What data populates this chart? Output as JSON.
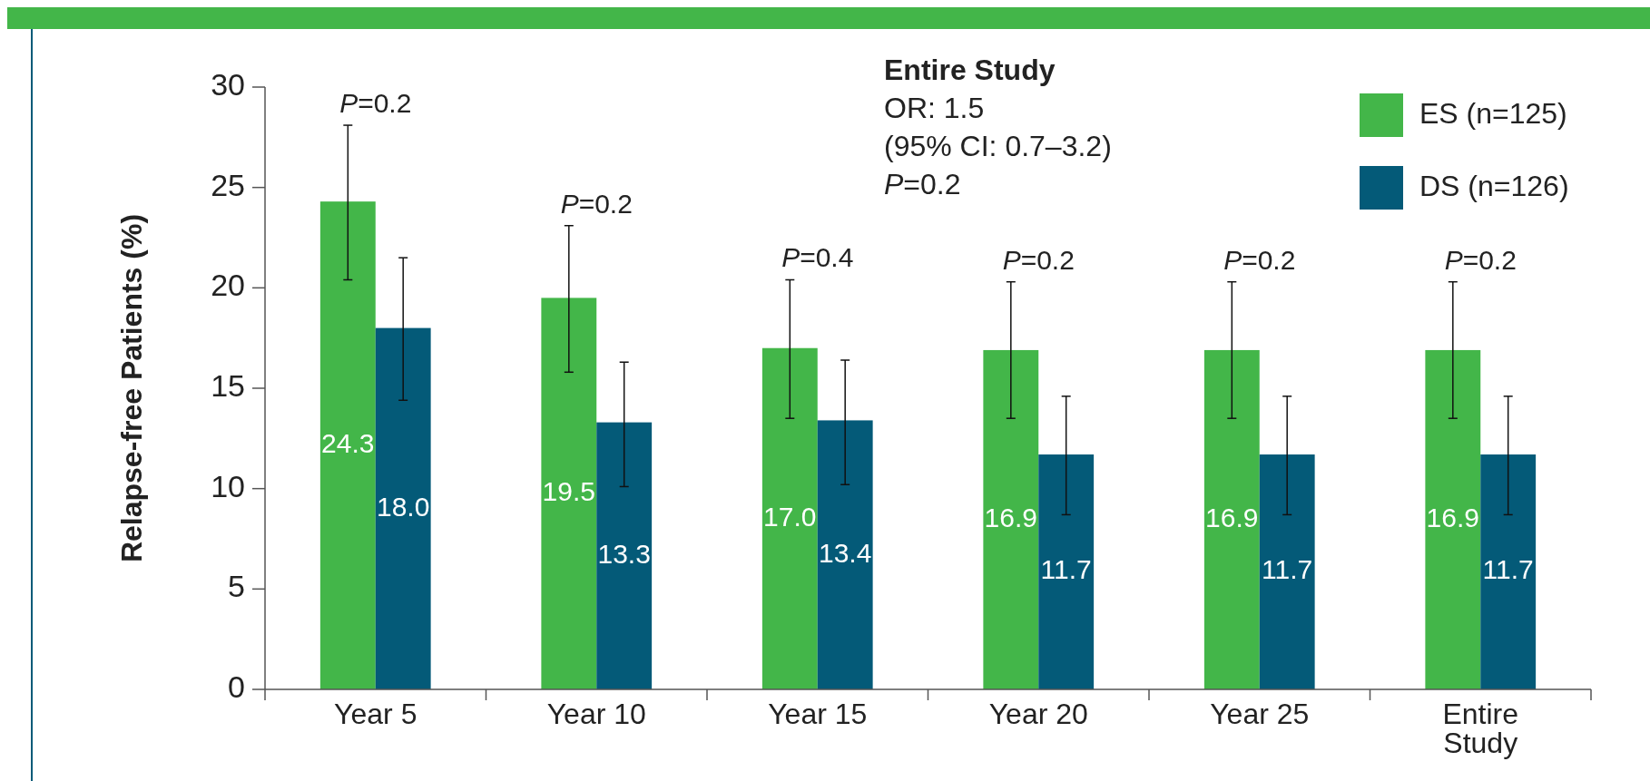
{
  "chart_data": {
    "type": "bar",
    "ylabel": "Relapse-free Patients (%)",
    "categories": [
      "Year 5",
      "Year 10",
      "Year 15",
      "Year 20",
      "Year 25",
      "Entire\nStudy"
    ],
    "series": [
      {
        "name": "ES (n=125)",
        "color": "#43b649",
        "values": [
          24.3,
          19.5,
          17.0,
          16.9,
          16.9,
          16.9
        ],
        "value_labels": [
          "24.3",
          "19.5",
          "17.0",
          "16.9",
          "16.9",
          "16.9"
        ],
        "errors": [
          [
            20.4,
            28.1
          ],
          [
            15.8,
            23.1
          ],
          [
            13.5,
            20.4
          ],
          [
            13.5,
            20.3
          ],
          [
            13.5,
            20.3
          ],
          [
            13.5,
            20.3
          ]
        ]
      },
      {
        "name": "DS (n=126)",
        "color": "#045a78",
        "values": [
          18.0,
          13.3,
          13.4,
          11.7,
          11.7,
          11.7
        ],
        "value_labels": [
          "18.0",
          "13.3",
          "13.4",
          "11.7",
          "11.7",
          "11.7"
        ],
        "errors": [
          [
            14.4,
            21.5
          ],
          [
            10.1,
            16.3
          ],
          [
            10.2,
            16.4
          ],
          [
            8.7,
            14.6
          ],
          [
            8.7,
            14.6
          ],
          [
            8.7,
            14.6
          ]
        ]
      }
    ],
    "ylim": [
      0,
      30
    ],
    "yticks": [
      0,
      5,
      10,
      15,
      20,
      25,
      30
    ],
    "legend": "top right",
    "annotations": [
      "P=0.2",
      "P=0.2",
      "P=0.4",
      "P=0.2",
      "P=0.2",
      "P=0.2",
      "Entire Study",
      "OR: 1.5",
      "(95% CI: 0.7–3.2)",
      "P=0.2"
    ]
  }
}
